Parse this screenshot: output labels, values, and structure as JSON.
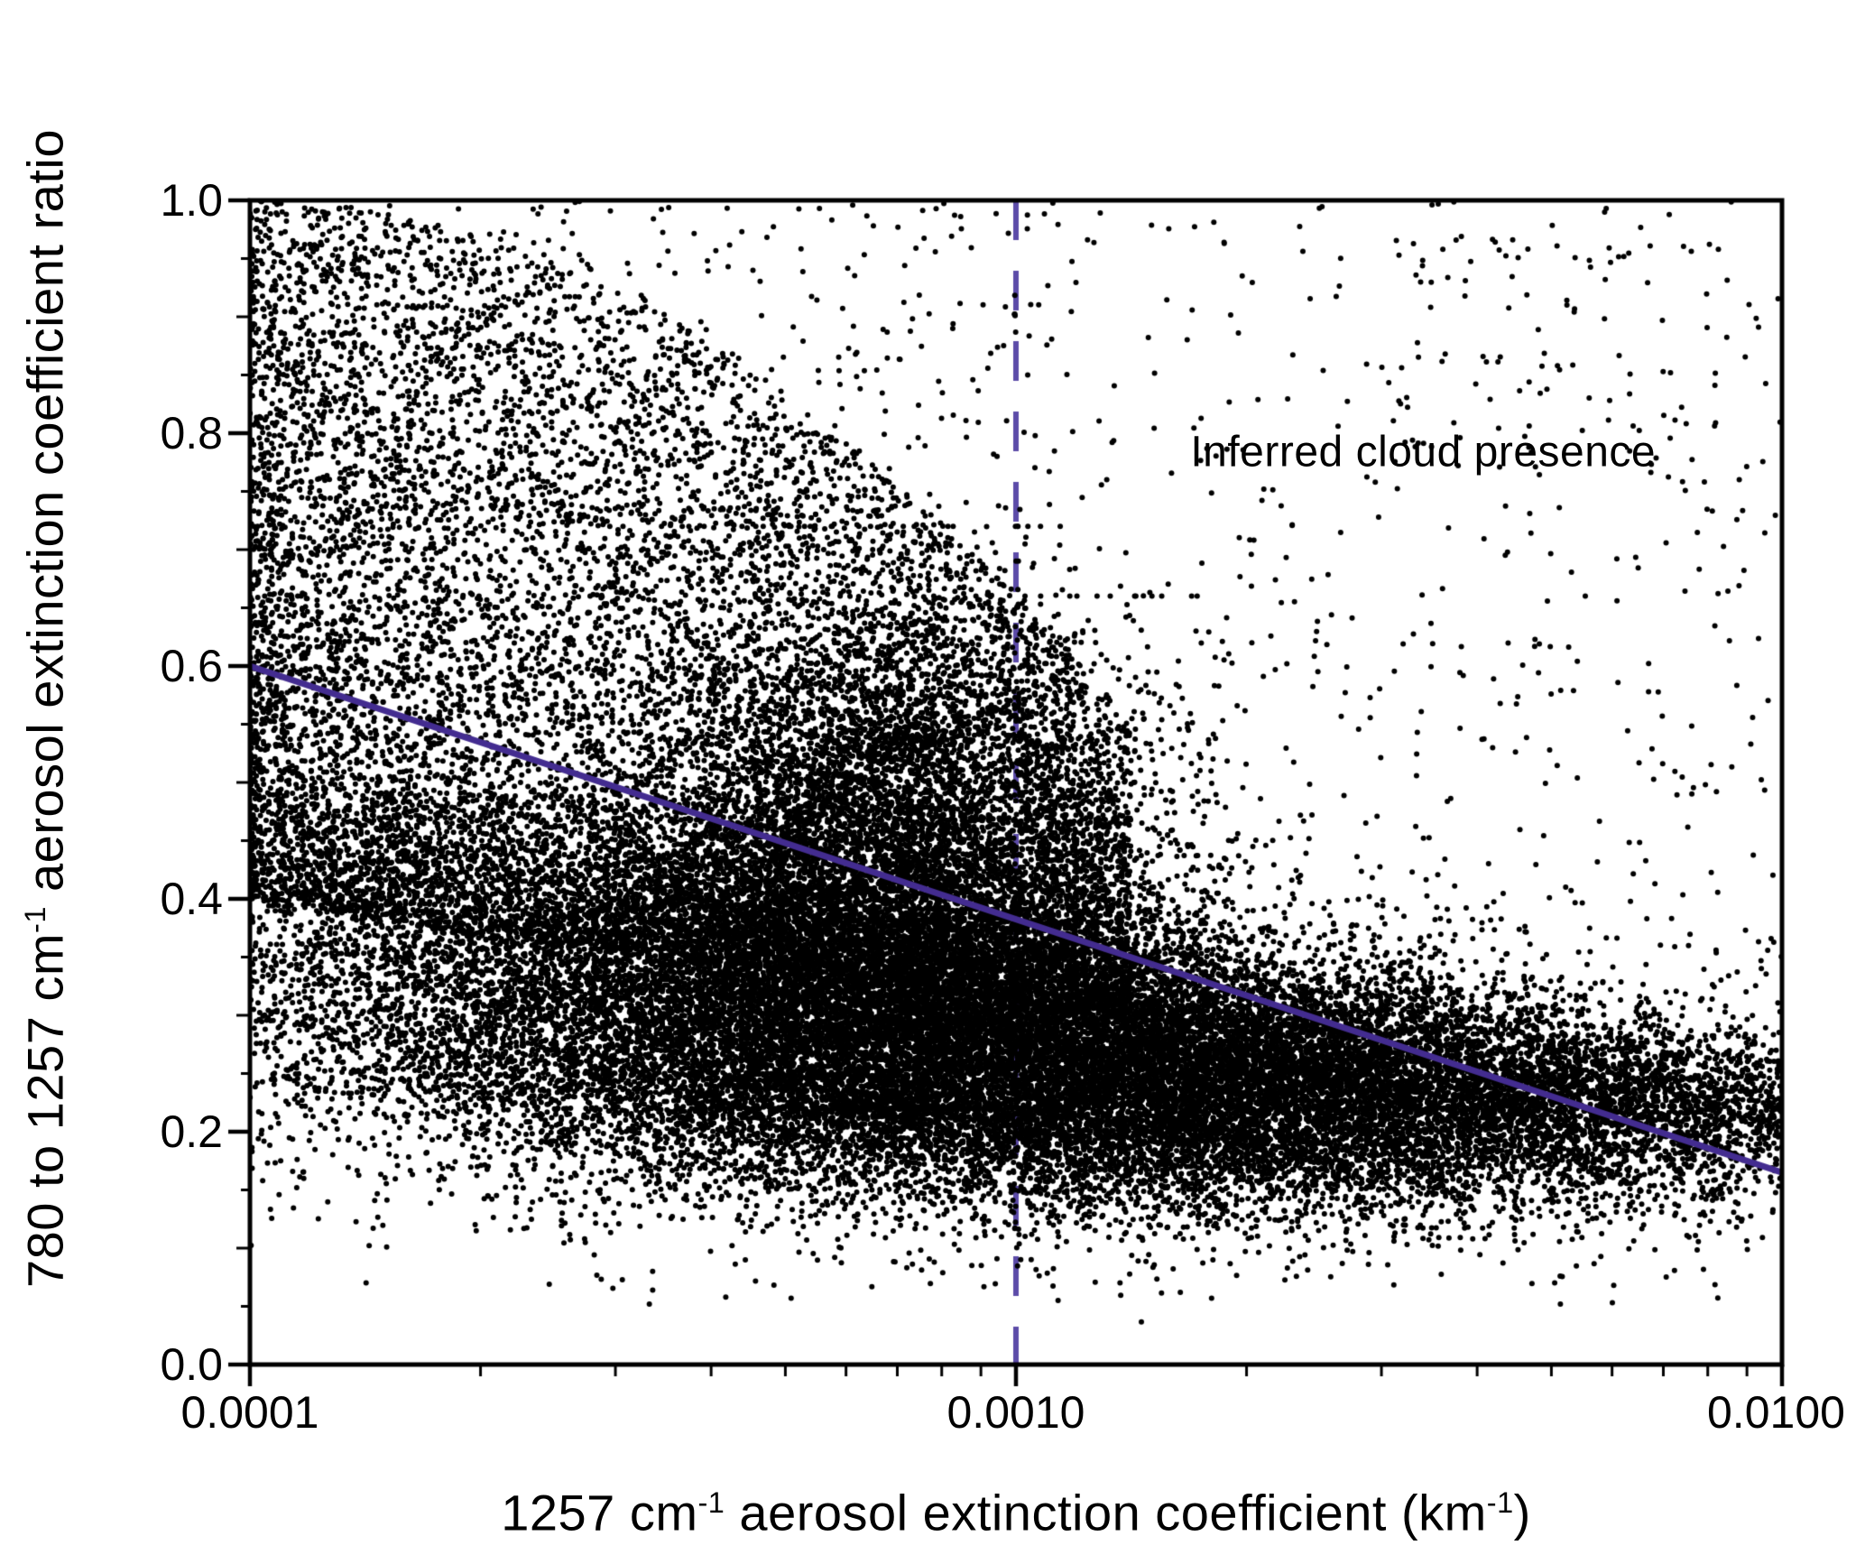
{
  "chart_data": {
    "type": "scatter",
    "title": "",
    "xlabel": "1257 cm⁻¹ aerosol extinction coefficient (km⁻¹)",
    "ylabel": "780 to 1257 cm⁻¹ aerosol extinction coefficient ratio",
    "xlabel_parts": [
      {
        "text": "1257 cm"
      },
      {
        "sup": "-1"
      },
      {
        "text": " aerosol extinction coefficient (km"
      },
      {
        "sup": "-1"
      },
      {
        "text": ")"
      }
    ],
    "ylabel_parts": [
      {
        "text": "780 to 1257 cm"
      },
      {
        "sup": "-1"
      },
      {
        "text": " aerosol extinction coefficient ratio"
      }
    ],
    "x_scale": "log10",
    "xlim": [
      0.0001,
      0.01
    ],
    "ylim": [
      0.0,
      1.0
    ],
    "grid": false,
    "x_ticks": [
      {
        "value": 0.0001,
        "label": "0.0001"
      },
      {
        "value": 0.001,
        "label": "0.0010"
      },
      {
        "value": 0.01,
        "label": "0.0100"
      }
    ],
    "x_minor_multiples": [
      2,
      3,
      4,
      5,
      6,
      7,
      8,
      9
    ],
    "y_ticks": [
      {
        "value": 0.0,
        "label": "0.0"
      },
      {
        "value": 0.2,
        "label": "0.2"
      },
      {
        "value": 0.4,
        "label": "0.4"
      },
      {
        "value": 0.6,
        "label": "0.6"
      },
      {
        "value": 0.8,
        "label": "0.8"
      },
      {
        "value": 1.0,
        "label": "1.0"
      }
    ],
    "y_minor_step": 0.05,
    "annotation": {
      "text": "Inferred cloud presence",
      "x": 0.0034,
      "y": 0.784
    },
    "cloud_threshold_line": {
      "x": 0.001,
      "style": "dashed",
      "color": "#5c4ba8"
    },
    "fit_line": {
      "x1": 0.0001,
      "y1": 0.6,
      "x2": 0.01,
      "y2": 0.165,
      "color": "#432c90"
    },
    "point_color": "#000000",
    "frame_color": "#000000",
    "scatter": {
      "seed": 20417,
      "dot_radius": 3.0,
      "band_curve": [
        0.21,
        0.07,
        0.07
      ],
      "clusters": [
        {
          "type": "band",
          "n": 28000,
          "u_mean": -3.0,
          "u_sd": 0.55,
          "u_min": -4.0,
          "u_max": -1.98,
          "sd_base": 0.03,
          "sd_slope": 0.06,
          "skew_p": 0.3,
          "skew_amt": 0.8
        },
        {
          "type": "blob",
          "n": 6000,
          "u_mean": -3.18,
          "u_sd": 0.16,
          "u_min": -3.6,
          "u_max": -2.92,
          "y_mean": 0.4,
          "y_sd": 0.1,
          "y_skew": 0.05,
          "y_min": 0.22,
          "y_max": 0.72
        },
        {
          "type": "blob",
          "n": 700,
          "u_mean": -2.92,
          "u_sd": 0.1,
          "u_min": -3.0,
          "u_max": -2.65,
          "y_mean": 0.4,
          "y_sd": 0.09,
          "y_skew": 0.05,
          "y_min": 0.2,
          "y_max": 0.66
        },
        {
          "type": "upper",
          "n": 10000,
          "u_span": 1.15,
          "u_pow": 1.25,
          "top_drop": 0.45,
          "y_pow": 1.35,
          "y_off": 0.05
        },
        {
          "type": "uniform",
          "n": 600,
          "u_min": -4.0,
          "u_max": -3.0,
          "y_min": 0.55,
          "y_max": 1.0
        },
        {
          "type": "right",
          "n": 800,
          "u_min": -3.0,
          "u_max": -2.0,
          "y_pow": 2.0,
          "y_off": 0.05,
          "y_top": 0.97
        },
        {
          "type": "uniform",
          "n": 70,
          "u_min": -2.5,
          "u_max": -2.05,
          "y_min": 0.78,
          "y_max": 0.97
        },
        {
          "type": "tail",
          "n": 2000,
          "u_mean": -3.05,
          "u_sd": 0.55,
          "u_min": -4.0,
          "u_max": -2.0,
          "y_drop": 0.04,
          "y_sd": 0.05,
          "y_min": 0.03
        }
      ]
    }
  },
  "colors": {
    "background": "#ffffff",
    "text": "#000000"
  }
}
